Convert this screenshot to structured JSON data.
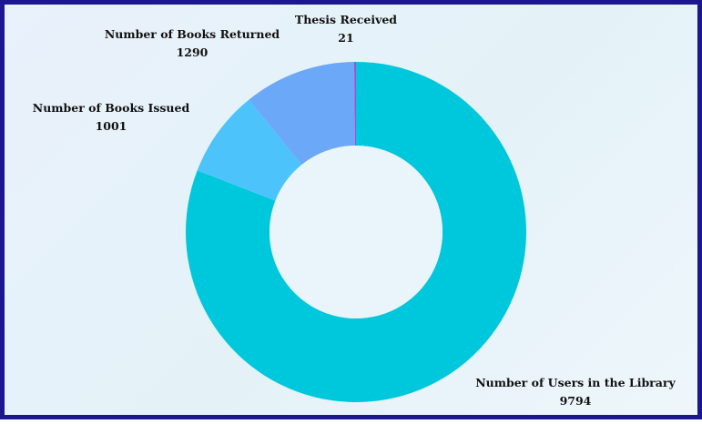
{
  "chart_data": {
    "type": "pie",
    "donut": true,
    "title": "",
    "slices": [
      {
        "label": "Number of Users in the Library",
        "value": 9794,
        "color": "#00c8dc"
      },
      {
        "label": "Number of Books Issued",
        "value": 1001,
        "color": "#4cc3fa"
      },
      {
        "label": "Number of Books Returned",
        "value": 1290,
        "color": "#6ba8f8"
      },
      {
        "label": "Thesis Received",
        "value": 21,
        "color": "#a24fd8"
      }
    ],
    "start_angle_deg": 0,
    "direction": "clockwise",
    "legend": "none",
    "data_labels": "outside"
  },
  "frame": {
    "border_color": "#1c1690"
  }
}
